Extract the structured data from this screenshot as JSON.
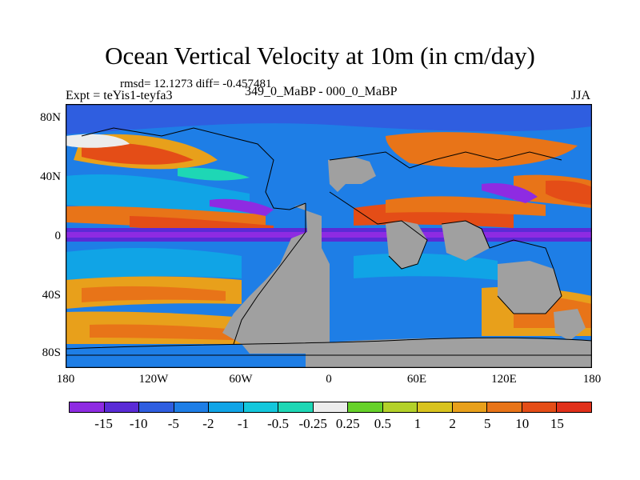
{
  "title": "Ocean Vertical Velocity at 10m (in cm/day)",
  "rmsd_line": "rmsd= 12.1273 diff= -0.457481",
  "expt_line": "Expt = teYis1-teyfa3",
  "experiments_line": "349_0_MaBP - 000_0_MaBP",
  "season": "JJA",
  "lat_labels": [
    "80N",
    "40N",
    "0",
    "40S",
    "80S"
  ],
  "lon_labels": [
    "180",
    "120W",
    "60W",
    "0",
    "60E",
    "120E",
    "180"
  ],
  "colorbar": {
    "labels": [
      "-15",
      "-10",
      "-5",
      "-2",
      "-1",
      "-0.5",
      "-0.25",
      "0.25",
      "0.5",
      "1",
      "2",
      "5",
      "10",
      "15"
    ],
    "colors": [
      "#8e2be2",
      "#5a2bd6",
      "#2f5ee0",
      "#1e7ee6",
      "#10a4e6",
      "#14c7dc",
      "#1ed7b5",
      "#ececec",
      "#66d12a",
      "#b3d12a",
      "#d8c31f",
      "#e8a01b",
      "#e87418",
      "#e44d17",
      "#e0301a"
    ]
  },
  "land_color": "#a0a0a0"
}
